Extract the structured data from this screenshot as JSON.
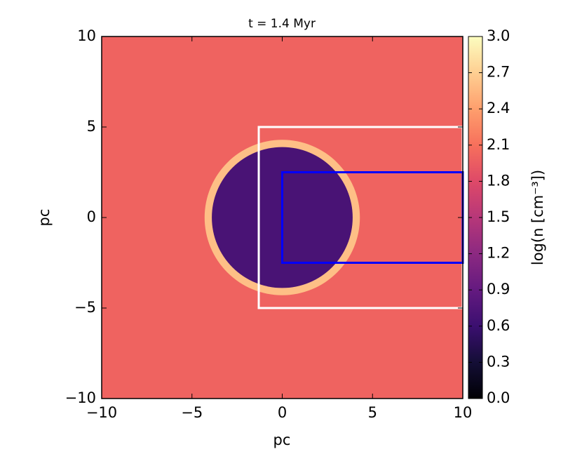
{
  "chart_data": {
    "type": "heatmap",
    "title": "t = 1.4 Myr",
    "x_label": "pc",
    "y_label": "pc",
    "colormap": "magma",
    "colorbar_label": "log(n [cm⁻³])",
    "xlim": [
      -10,
      10
    ],
    "ylim": [
      -10,
      10
    ],
    "xticks": [
      {
        "value": -10,
        "label": "−10"
      },
      {
        "value": -5,
        "label": "−5"
      },
      0,
      5,
      10
    ],
    "yticks": [
      {
        "value": -10,
        "label": "−10"
      },
      {
        "value": -5,
        "label": "−5"
      },
      0,
      5,
      10
    ],
    "clim": [
      0,
      3
    ],
    "cticks": [
      {
        "value": 0,
        "label": "0.0"
      },
      {
        "value": 0.3,
        "label": "0.3"
      },
      {
        "value": 0.6,
        "label": "0.6"
      },
      {
        "value": 0.9,
        "label": "0.9"
      },
      {
        "value": 1.2,
        "label": "1.2"
      },
      {
        "value": 1.5,
        "label": "1.5"
      },
      {
        "value": 1.8,
        "label": "1.8"
      },
      {
        "value": 2.1,
        "label": "2.1"
      },
      {
        "value": 2.4,
        "label": "2.4"
      },
      {
        "value": 2.7,
        "label": "2.7"
      },
      {
        "value": 3,
        "label": "3.0"
      }
    ],
    "field": {
      "background": 2.0,
      "bubble": {
        "center": [
          0,
          0
        ],
        "radius": 3.9,
        "value": 0.7
      },
      "shell": {
        "outer_radius": 4.3,
        "value": 2.6
      }
    },
    "boxes": [
      {
        "color": "#ffffff",
        "x": [
          -1.3,
          10
        ],
        "y": [
          -5,
          5
        ]
      },
      {
        "color": "#0000ff",
        "x": [
          0,
          10
        ],
        "y": [
          -2.5,
          2.5
        ]
      }
    ]
  }
}
